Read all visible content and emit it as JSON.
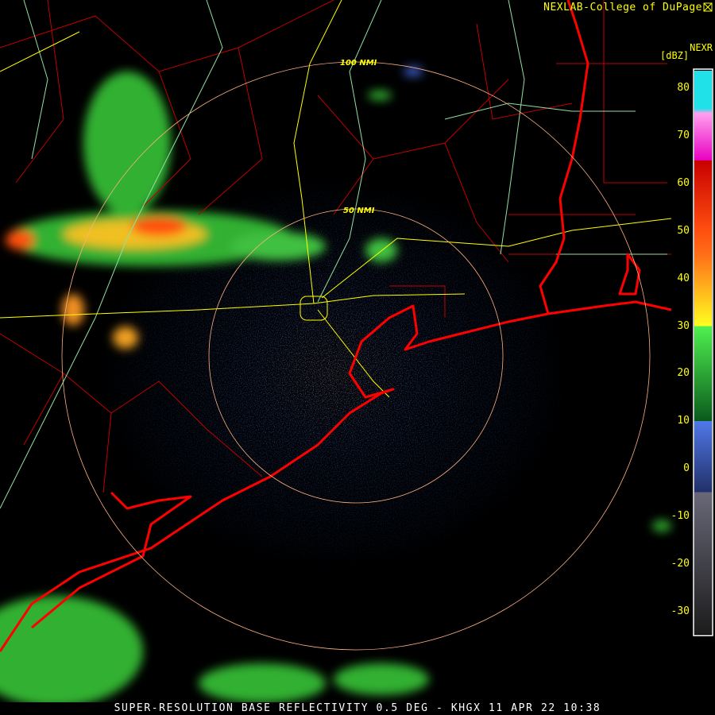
{
  "header": {
    "credit": "NEXLAB-College of DuPage",
    "logo_icon": "cod-logo-icon"
  },
  "legend": {
    "product": "NEXR",
    "unit": "[dBZ]",
    "ticks": [
      "80",
      "70",
      "60",
      "50",
      "40",
      "30",
      "20",
      "10",
      "0",
      "-10",
      "-20",
      "-30"
    ],
    "tick_values": [
      80,
      70,
      60,
      50,
      40,
      30,
      20,
      10,
      0,
      -10,
      -20,
      -30
    ],
    "range": [
      -35,
      84
    ],
    "color_stops": [
      {
        "dbz": -35,
        "color": "#1c1c1c"
      },
      {
        "dbz": -5,
        "color": "#686878"
      },
      {
        "dbz": -5,
        "color": "#22306a"
      },
      {
        "dbz": 10,
        "color": "#5078e8"
      },
      {
        "dbz": 10,
        "color": "#0a5a1c"
      },
      {
        "dbz": 30,
        "color": "#50f050"
      },
      {
        "dbz": 30,
        "color": "#ffff20"
      },
      {
        "dbz": 45,
        "color": "#ff7018"
      },
      {
        "dbz": 50,
        "color": "#ff5010"
      },
      {
        "dbz": 65,
        "color": "#c80000"
      },
      {
        "dbz": 65,
        "color": "#e800c0"
      },
      {
        "dbz": 75,
        "color": "#ffa0f0"
      },
      {
        "dbz": 76,
        "color": "#20e0e8"
      }
    ]
  },
  "map": {
    "station": "KHGX",
    "rings": [
      {
        "label": "50 NMI",
        "nmi": 50
      },
      {
        "label": "100 NMI",
        "nmi": 100
      }
    ],
    "colors": {
      "coast": "#ff0000",
      "counties": "#c00000",
      "highways": "#ffff00",
      "rivers": "#90e0a0",
      "rings": "#ffb080"
    }
  },
  "footer": {
    "title": "SUPER-RESOLUTION BASE REFLECTIVITY 0.5 DEG - KHGX 11 APR 22 10:38"
  }
}
